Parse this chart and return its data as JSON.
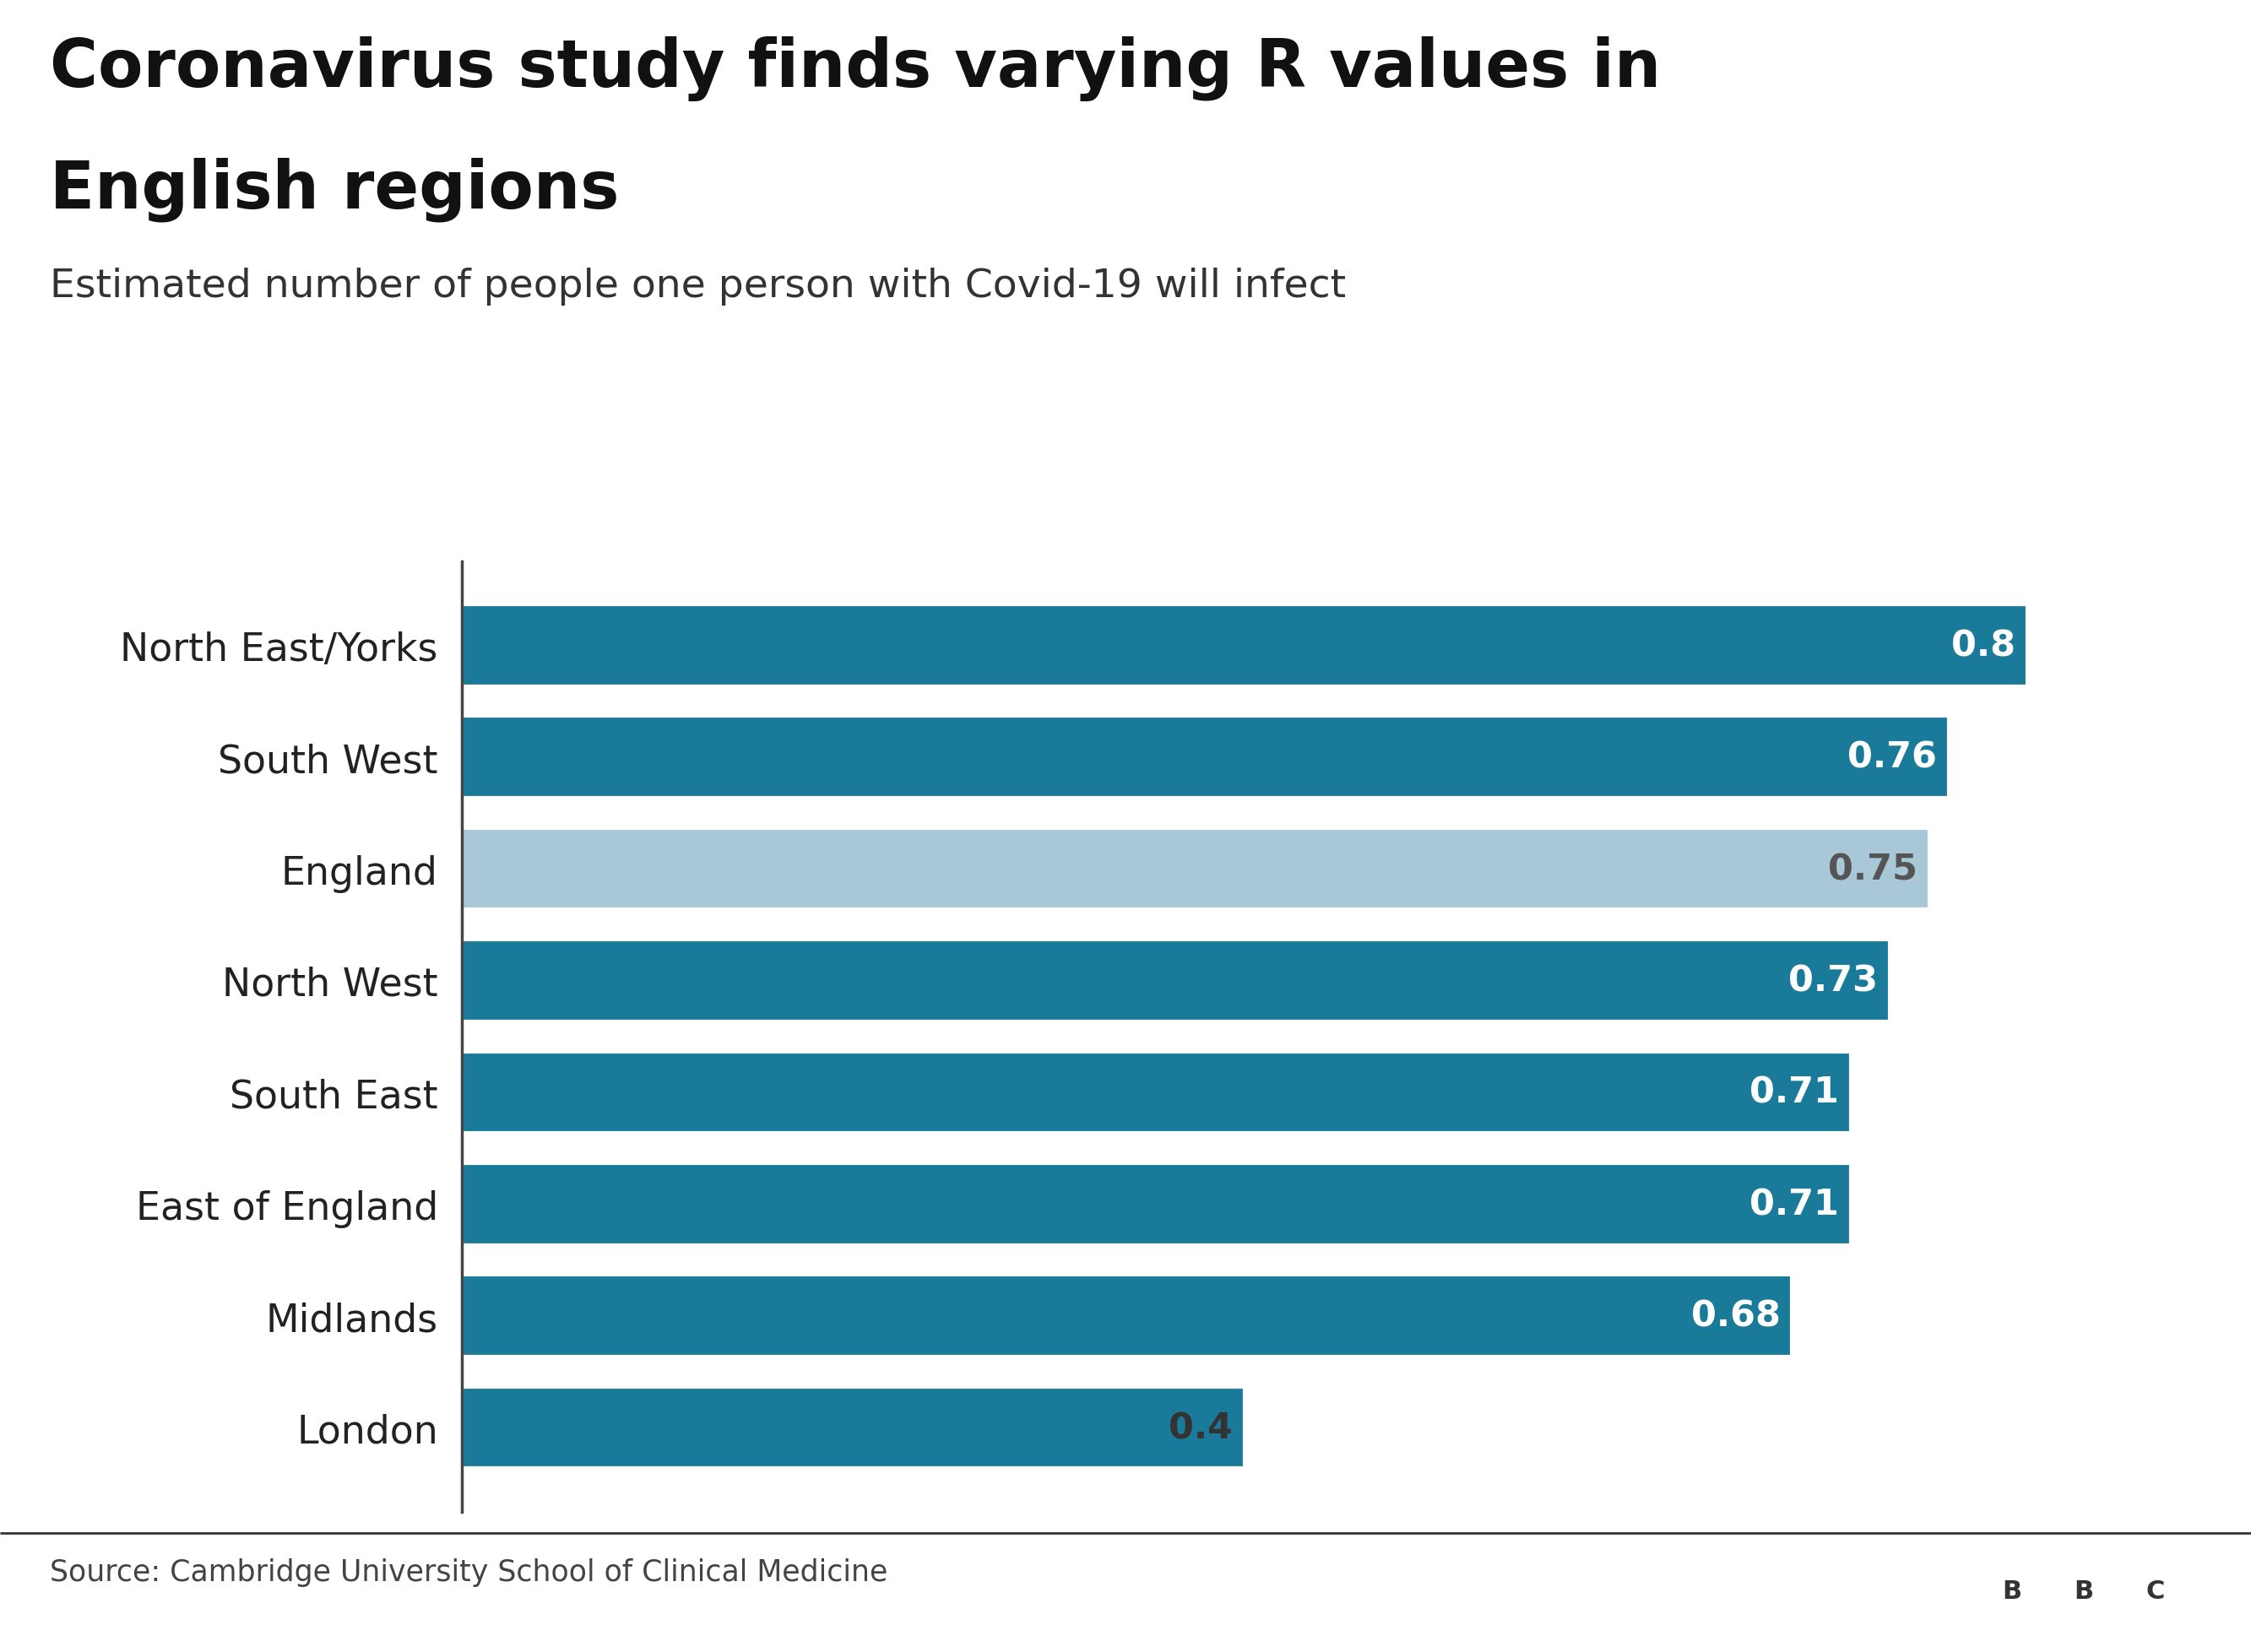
{
  "title_line1": "Coronavirus study finds varying R values in",
  "title_line2": "English regions",
  "subtitle": "Estimated number of people one person with Covid-19 will infect",
  "source": "Source: Cambridge University School of Clinical Medicine",
  "categories": [
    "North East/Yorks",
    "South West",
    "England",
    "North West",
    "South East",
    "East of England",
    "Midlands",
    "London"
  ],
  "values": [
    0.8,
    0.76,
    0.75,
    0.73,
    0.71,
    0.71,
    0.68,
    0.4
  ],
  "bar_colors": [
    "#1a7a99",
    "#1a7a99",
    "#a8c8d8",
    "#1a7a99",
    "#1a7a99",
    "#1a7a99",
    "#1a7a99",
    "#1a7a99"
  ],
  "value_label_colors": [
    "#ffffff",
    "#ffffff",
    "#555555",
    "#ffffff",
    "#ffffff",
    "#ffffff",
    "#ffffff",
    "#333333"
  ],
  "background_color": "#ffffff",
  "xlim": [
    0,
    0.88
  ],
  "title_fontsize": 56,
  "subtitle_fontsize": 34,
  "label_fontsize": 33,
  "value_fontsize": 31,
  "source_fontsize": 25
}
